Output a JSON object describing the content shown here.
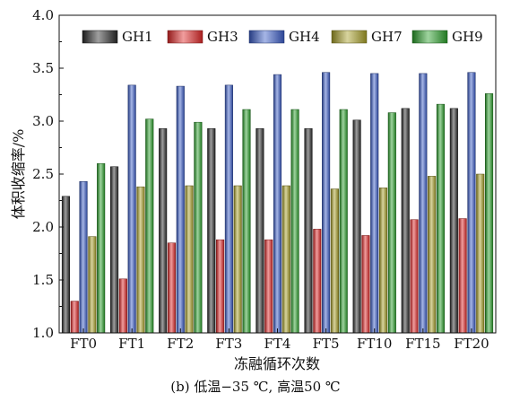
{
  "chart_data": {
    "type": "bar",
    "categories": [
      "FT0",
      "FT1",
      "FT2",
      "FT3",
      "FT4",
      "FT5",
      "FT10",
      "FT15",
      "FT20"
    ],
    "series": [
      {
        "name": "GH1",
        "color": "#2a2a2a",
        "values": [
          2.29,
          2.57,
          2.93,
          2.93,
          2.93,
          2.93,
          3.01,
          3.12,
          3.12
        ]
      },
      {
        "name": "GH3",
        "color": "#e02828",
        "values": [
          1.3,
          1.51,
          1.85,
          1.88,
          1.88,
          1.98,
          1.92,
          2.07,
          2.08
        ]
      },
      {
        "name": "GH4",
        "color": "#3a5cc8",
        "values": [
          2.43,
          3.34,
          3.33,
          3.34,
          3.44,
          3.46,
          3.45,
          3.45,
          3.46
        ]
      },
      {
        "name": "GH7",
        "color": "#a8a028",
        "values": [
          1.91,
          2.38,
          2.39,
          2.39,
          2.39,
          2.36,
          2.37,
          2.48,
          2.5
        ]
      },
      {
        "name": "GH9",
        "color": "#2aa02a",
        "values": [
          2.6,
          3.02,
          2.99,
          3.11,
          3.11,
          3.11,
          3.08,
          3.16,
          3.26
        ]
      }
    ],
    "ylabel": "体积收缩率/%",
    "xlabel": "冻融循环次数",
    "ylim": [
      1.0,
      4.0
    ],
    "yticks": [
      "1.0",
      "1.5",
      "2.0",
      "2.5",
      "3.0",
      "3.5",
      "4.0"
    ],
    "legend_position": "top",
    "grid": false
  },
  "caption": "(b) 低温−35 ℃, 高温50 ℃"
}
